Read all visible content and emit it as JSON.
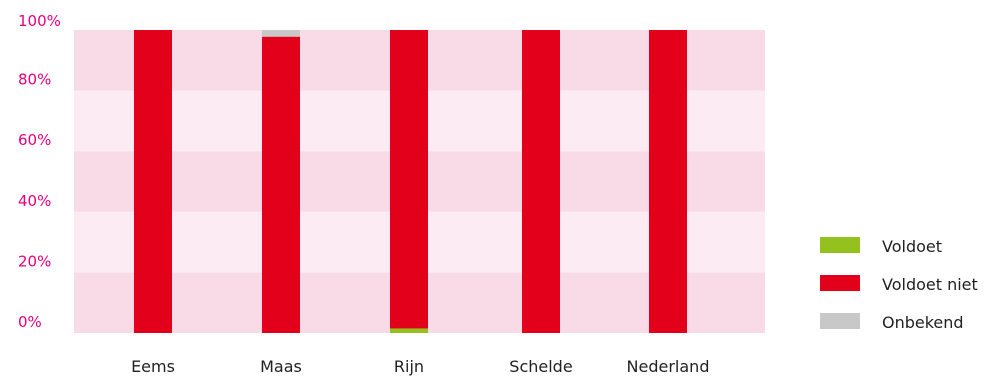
{
  "chart_data": {
    "type": "bar",
    "stacked": true,
    "categories": [
      "Eems",
      "Maas",
      "Rijn",
      "Schelde",
      "Nederland"
    ],
    "series": [
      {
        "name": "Voldoet",
        "color": "#95c11f",
        "values": [
          0,
          0,
          1.5,
          0,
          0
        ]
      },
      {
        "name": "Voldoet niet",
        "color": "#e2001a",
        "values": [
          100,
          97.8,
          98.5,
          100,
          100
        ]
      },
      {
        "name": "Onbekend",
        "color": "#c8c8c8",
        "values": [
          0,
          2.2,
          0,
          0,
          0
        ]
      }
    ],
    "ylim": [
      0,
      100
    ],
    "yticks": [
      0,
      20,
      40,
      60,
      80,
      100
    ],
    "ytick_labels": [
      "0%",
      "20%",
      "40%",
      "60%",
      "80%",
      "100%"
    ],
    "band_colors": [
      "#f8dbe7",
      "#fcebf2"
    ],
    "legend_position": "right",
    "grid": false
  }
}
